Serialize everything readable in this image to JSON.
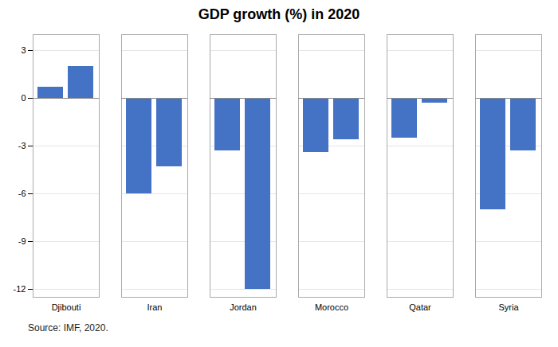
{
  "chart_data": {
    "type": "bar",
    "title": "GDP growth (%) in 2020",
    "caption": "Source: IMF, 2020.",
    "categories": [
      "Djibouti",
      "Iran",
      "Jordan",
      "Morocco",
      "Qatar",
      "Syria"
    ],
    "series": [
      {
        "color": "#4472C4",
        "values": [
          0.7,
          -6.0,
          -3.3,
          -3.4,
          -2.5,
          -7.0
        ]
      },
      {
        "color": "#4472C4",
        "values": [
          2.0,
          -4.3,
          -12.0,
          -2.6,
          -0.3,
          -3.3
        ]
      }
    ],
    "color": "#4472C4",
    "ylim": [
      -12.5,
      4
    ],
    "yticks": [
      -12,
      -9,
      -6,
      -3,
      0,
      3
    ],
    "grid": true
  }
}
